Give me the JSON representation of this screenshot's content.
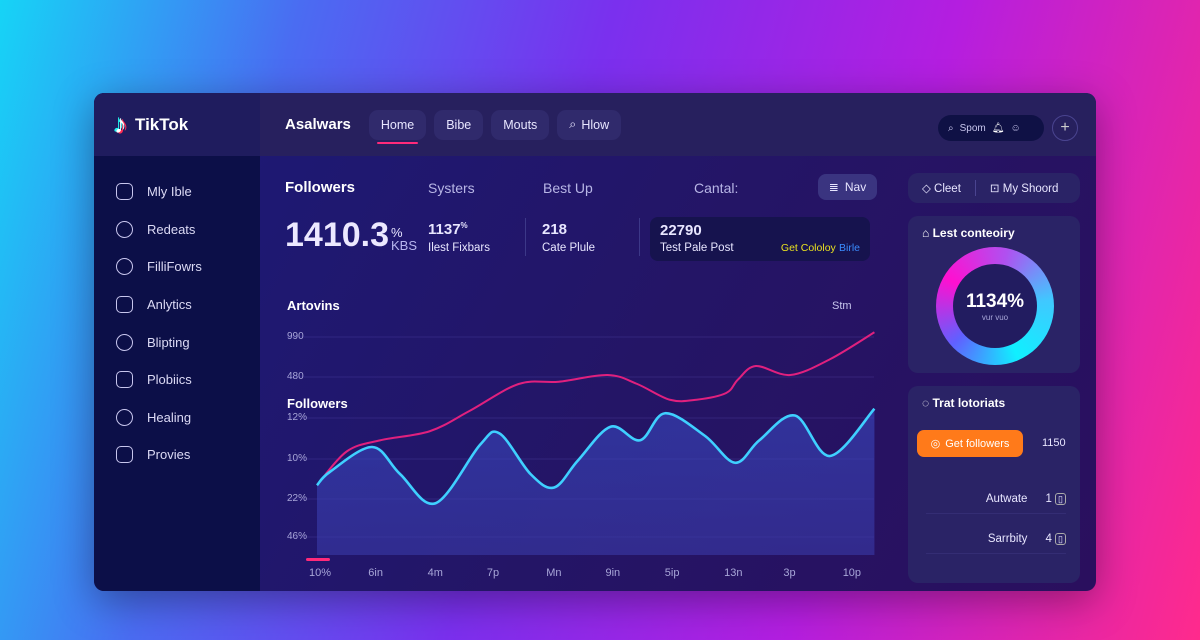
{
  "app": {
    "name": "TikTok"
  },
  "header": {
    "title": "Asalwars",
    "tabs": [
      {
        "label": "Home",
        "active": true
      },
      {
        "label": "Bibe"
      },
      {
        "label": "Mouts"
      },
      {
        "label": "Hlow"
      }
    ],
    "search_text": "Spom"
  },
  "sidebar": {
    "items": [
      {
        "label": "Mly Ible",
        "icon": "clipboard-icon"
      },
      {
        "label": "Redeats",
        "icon": "clock-icon"
      },
      {
        "label": "FilliFowrs",
        "icon": "compass-icon"
      },
      {
        "label": "Anlytics",
        "icon": "list-icon"
      },
      {
        "label": "Blipting",
        "icon": "brush-icon"
      },
      {
        "label": "Plobiics",
        "icon": "document-icon"
      },
      {
        "label": "Healing",
        "icon": "smile-icon"
      },
      {
        "label": "Provies",
        "icon": "image-icon"
      }
    ]
  },
  "stats": {
    "tabs": [
      "Followers",
      "Systers",
      "Best Up",
      "Cantal:"
    ],
    "nav_button": "Nav",
    "main_value": "1410.3",
    "main_sup": "%",
    "main_unit": "KBS",
    "items": [
      {
        "value": "1137",
        "sup": "%",
        "label": "Ilest Fixbars"
      },
      {
        "value": "218",
        "label": "Cate Plule"
      },
      {
        "value": "22790",
        "label": "Test Pale Post",
        "link1": "Get Cololoy",
        "link2": "Birle"
      }
    ]
  },
  "chart": {
    "title": "Artovins",
    "subtitle": "Followers",
    "range_button": "Stm"
  },
  "chart_data": {
    "type": "line",
    "title": "Artovins",
    "ylabel": "Followers",
    "y_ticks": [
      "990",
      "480",
      "12%",
      "10%",
      "22%",
      "46%"
    ],
    "categories": [
      "10%",
      "6in",
      "4m",
      "7p",
      "Mn",
      "9in",
      "5ip",
      "13n",
      "3p",
      "10p"
    ],
    "ylim": [
      0,
      100
    ],
    "grid": true,
    "series": [
      {
        "color": "#e0207e",
        "points": [
          [
            0,
            31
          ],
          [
            0.5,
            46
          ],
          [
            1.07,
            51
          ],
          [
            1.9,
            55
          ],
          [
            2.57,
            64
          ],
          [
            3.4,
            76
          ],
          [
            4.08,
            77
          ],
          [
            4.9,
            80
          ],
          [
            5.4,
            76
          ],
          [
            5.95,
            69
          ],
          [
            6.4,
            69
          ],
          [
            6.9,
            72
          ],
          [
            7.1,
            78
          ],
          [
            7.4,
            84
          ],
          [
            7.98,
            80
          ],
          [
            8.65,
            87
          ],
          [
            9.4,
            99
          ]
        ]
      },
      {
        "color": "#3fd0ff",
        "fill": true,
        "points": [
          [
            0,
            31
          ],
          [
            0.22,
            37
          ],
          [
            0.93,
            48
          ],
          [
            1.4,
            36
          ],
          [
            2.0,
            23
          ],
          [
            2.75,
            49
          ],
          [
            3.08,
            54
          ],
          [
            3.6,
            36
          ],
          [
            4.0,
            30
          ],
          [
            4.4,
            42
          ],
          [
            4.95,
            57
          ],
          [
            5.45,
            51
          ],
          [
            5.87,
            63
          ],
          [
            6.54,
            53
          ],
          [
            7.05,
            41
          ],
          [
            7.46,
            51
          ],
          [
            8.06,
            62
          ],
          [
            8.65,
            44
          ],
          [
            9.4,
            65
          ]
        ]
      }
    ]
  },
  "right": {
    "buttons": [
      "Cleet",
      "My Shoord"
    ],
    "donut": {
      "title": "Lest conteoiry",
      "value": "1134%",
      "caption": "vur vuo",
      "fraction": 1
    },
    "list": {
      "title": "Trat lotoriats",
      "cta": "Get followers",
      "cta_value": "1150",
      "rows": [
        {
          "label": "Autwate",
          "value": "1"
        },
        {
          "label": "Sarrbity",
          "value": "4"
        }
      ]
    }
  },
  "colors": {
    "accent": "#ff2a7a",
    "orange": "#ff7a1a",
    "cyan": "#3fd0ff"
  }
}
